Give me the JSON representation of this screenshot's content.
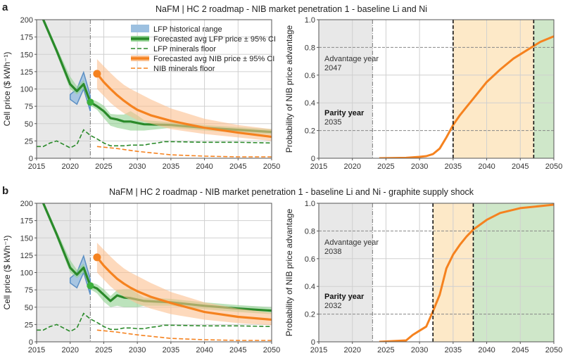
{
  "panels": [
    {
      "letter": "a",
      "title": "NaFM | HC 2 roadmap - NIB market penetration 1 - baseline Li and Ni"
    },
    {
      "letter": "b",
      "title": "NaFM | HC 2 roadmap - NIB market penetration 1 - baseline Li and Ni - graphite supply shock"
    }
  ],
  "colors": {
    "lfp": "#2a8a2a",
    "lfp_ci": "#8fd08f",
    "nib": "#f5821f",
    "nib_ci": "#fbc090",
    "hist": "#5b8fc4",
    "hist_fill": "#9cc0e0",
    "history_region": "#e8e8e8",
    "parity_region": "#fde9c8",
    "advantage_region": "#cfe7c9"
  },
  "chart_data": [
    {
      "type": "line",
      "panel": "a",
      "ylabel": "Cell price ($ kWh⁻¹)",
      "xlim": [
        2015,
        2050
      ],
      "ylim": [
        0,
        200
      ],
      "xticks": [
        "2015",
        "2020",
        "2025",
        "2030",
        "2035",
        "2040",
        "2045",
        "2050"
      ],
      "yticks": [
        "0",
        "25",
        "50",
        "75",
        "100",
        "125",
        "150",
        "175",
        "200"
      ],
      "grid": true,
      "history_until": 2023,
      "legend": {
        "placement": "top-right",
        "entries": [
          "LFP historical range",
          "Forecasted avg LFP price ± 95% CI",
          "LFP minerals floor",
          "Forecasted avg NIB price ± 95% CI",
          "NIB minerals floor"
        ]
      },
      "series": [
        {
          "name": "LFP historical range",
          "kind": "range",
          "x": [
            2020,
            2021,
            2022,
            2023
          ],
          "lower": [
            85,
            78,
            100,
            68
          ],
          "upper": [
            92,
            100,
            124,
            90
          ]
        },
        {
          "name": "Forecasted avg LFP price ± 95% CI",
          "kind": "line_ci",
          "marker_x": 2023,
          "x": [
            2015,
            2016,
            2018,
            2020,
            2021,
            2022,
            2023,
            2024,
            2025,
            2026,
            2027,
            2028,
            2029,
            2030,
            2031,
            2035,
            2040,
            2045,
            2050
          ],
          "y": [
            225,
            200,
            155,
            107,
            97,
            107,
            81,
            75,
            68,
            58,
            56,
            53,
            53,
            51,
            49,
            48,
            44,
            41,
            38
          ],
          "lower": [
            220,
            196,
            150,
            100,
            92,
            100,
            76,
            70,
            58,
            47,
            44,
            42,
            40,
            40,
            40,
            44,
            40,
            37,
            34
          ],
          "upper": [
            230,
            204,
            160,
            118,
            104,
            113,
            86,
            82,
            76,
            64,
            63,
            63,
            68,
            62,
            55,
            52,
            48,
            45,
            42
          ]
        },
        {
          "name": "LFP minerals floor",
          "kind": "dashed",
          "x": [
            2015,
            2016,
            2017,
            2018,
            2019,
            2020,
            2021,
            2022,
            2023,
            2024,
            2025,
            2026,
            2027,
            2028,
            2029,
            2030,
            2031,
            2032,
            2033,
            2034,
            2035,
            2040,
            2045,
            2050
          ],
          "y": [
            17,
            17,
            22,
            25,
            20,
            15,
            20,
            41,
            33,
            28,
            22,
            18,
            18,
            18,
            19,
            19,
            19,
            21,
            22,
            24,
            24,
            23,
            23,
            22
          ]
        },
        {
          "name": "Forecasted avg NIB price ± 95% CI",
          "kind": "line_ci",
          "marker_x": 2024,
          "x": [
            2024,
            2025,
            2026,
            2027,
            2028,
            2029,
            2030,
            2032,
            2035,
            2040,
            2045,
            2050
          ],
          "y": [
            122,
            110,
            100,
            91,
            83,
            76,
            70,
            62,
            54,
            44,
            37,
            31
          ],
          "lower": [
            100,
            90,
            80,
            72,
            65,
            60,
            55,
            50,
            42,
            35,
            30,
            25
          ],
          "upper": [
            143,
            133,
            123,
            114,
            106,
            100,
            95,
            85,
            72,
            57,
            48,
            42
          ]
        },
        {
          "name": "NIB minerals floor",
          "kind": "dashed",
          "x": [
            2024,
            2027,
            2030,
            2035,
            2040,
            2045,
            2050
          ],
          "y": [
            17,
            14,
            10,
            5,
            3,
            2,
            2
          ]
        }
      ]
    },
    {
      "type": "line",
      "panel": "a",
      "ylabel": "Probability of NIB price advantage",
      "xlim": [
        2015,
        2050
      ],
      "ylim": [
        0,
        1
      ],
      "xticks": [
        "2015",
        "2020",
        "2025",
        "2030",
        "2035",
        "2040",
        "2045",
        "2050"
      ],
      "yticks": [
        "0",
        "0.2",
        "0.4",
        "0.6",
        "0.8",
        "1.0"
      ],
      "grid": true,
      "history_until": 2023,
      "thresholds": [
        0.2,
        0.8
      ],
      "parity_year": 2035,
      "advantage_year": 2047,
      "annotations": {
        "advantage_label": "Advantage year",
        "advantage_value": "2047",
        "parity_label": "Parity year",
        "parity_value": "2035"
      },
      "series": [
        {
          "kind": "prob",
          "x": [
            2024,
            2028,
            2030,
            2031,
            2032,
            2033,
            2034,
            2035,
            2036,
            2037,
            2038,
            2039,
            2040,
            2042,
            2044,
            2046,
            2047,
            2048,
            2050
          ],
          "y": [
            0,
            0.003,
            0.01,
            0.015,
            0.03,
            0.07,
            0.15,
            0.24,
            0.31,
            0.37,
            0.43,
            0.49,
            0.55,
            0.64,
            0.72,
            0.78,
            0.81,
            0.84,
            0.88
          ]
        }
      ]
    },
    {
      "type": "line",
      "panel": "b",
      "ylabel": "Cell price ($ kWh⁻¹)",
      "xlim": [
        2015,
        2050
      ],
      "ylim": [
        0,
        200
      ],
      "xticks": [
        "2015",
        "2020",
        "2025",
        "2030",
        "2035",
        "2040",
        "2045",
        "2050"
      ],
      "yticks": [
        "0",
        "25",
        "50",
        "75",
        "100",
        "125",
        "150",
        "175",
        "200"
      ],
      "grid": true,
      "history_until": 2023,
      "series": [
        {
          "kind": "range",
          "x": [
            2020,
            2021,
            2022,
            2023
          ],
          "lower": [
            85,
            78,
            100,
            68
          ],
          "upper": [
            92,
            100,
            124,
            90
          ]
        },
        {
          "kind": "line_ci",
          "marker_x": 2023,
          "x": [
            2015,
            2016,
            2018,
            2020,
            2021,
            2022,
            2023,
            2024,
            2025,
            2026,
            2027,
            2028,
            2029,
            2030,
            2031,
            2035,
            2040,
            2045,
            2050
          ],
          "y": [
            225,
            200,
            155,
            107,
            97,
            107,
            81,
            77,
            68,
            59,
            67,
            64,
            63,
            61,
            59,
            57,
            52,
            48,
            45
          ],
          "lower": [
            220,
            196,
            150,
            100,
            92,
            100,
            76,
            70,
            58,
            50,
            52,
            50,
            50,
            50,
            52,
            52,
            47,
            43,
            40
          ],
          "upper": [
            230,
            204,
            160,
            118,
            104,
            113,
            86,
            83,
            76,
            66,
            75,
            76,
            76,
            70,
            64,
            62,
            57,
            53,
            50
          ]
        },
        {
          "kind": "dashed",
          "x": [
            2015,
            2016,
            2017,
            2018,
            2019,
            2020,
            2021,
            2022,
            2023,
            2024,
            2025,
            2026,
            2027,
            2028,
            2029,
            2030,
            2031,
            2032,
            2033,
            2034,
            2035,
            2040,
            2045,
            2050
          ],
          "y": [
            17,
            17,
            22,
            25,
            20,
            15,
            20,
            41,
            33,
            28,
            22,
            18,
            18,
            20,
            20,
            19,
            19,
            21,
            22,
            24,
            24,
            23,
            23,
            22
          ]
        },
        {
          "kind": "line_ci",
          "marker_x": 2024,
          "x": [
            2024,
            2025,
            2026,
            2027,
            2028,
            2029,
            2030,
            2032,
            2035,
            2040,
            2045,
            2050
          ],
          "y": [
            122,
            110,
            100,
            91,
            84,
            78,
            73,
            65,
            56,
            43,
            36,
            32
          ],
          "lower": [
            100,
            90,
            80,
            72,
            65,
            60,
            55,
            48,
            40,
            32,
            27,
            24
          ],
          "upper": [
            143,
            133,
            123,
            114,
            106,
            100,
            95,
            85,
            72,
            57,
            48,
            42
          ]
        },
        {
          "kind": "dashed",
          "x": [
            2024,
            2027,
            2030,
            2035,
            2040,
            2045,
            2050
          ],
          "y": [
            17,
            14,
            10,
            5,
            3,
            2,
            2
          ]
        }
      ]
    },
    {
      "type": "line",
      "panel": "b",
      "ylabel": "Probability of NIB price advantage",
      "xlim": [
        2015,
        2050
      ],
      "ylim": [
        0,
        1
      ],
      "xticks": [
        "2015",
        "2020",
        "2025",
        "2030",
        "2035",
        "2040",
        "2045",
        "2050"
      ],
      "yticks": [
        "0",
        "0.2",
        "0.4",
        "0.6",
        "0.8",
        "1.0"
      ],
      "grid": true,
      "history_until": 2023,
      "thresholds": [
        0.2,
        0.8
      ],
      "parity_year": 2032,
      "advantage_year": 2038,
      "annotations": {
        "advantage_label": "Advantage year",
        "advantage_value": "2038",
        "parity_label": "Parity year",
        "parity_value": "2032"
      },
      "series": [
        {
          "kind": "prob",
          "x": [
            2024,
            2028,
            2029,
            2030,
            2031,
            2032,
            2033,
            2034,
            2035,
            2036,
            2037,
            2038,
            2040,
            2042,
            2045,
            2050
          ],
          "y": [
            0,
            0.01,
            0.05,
            0.08,
            0.11,
            0.22,
            0.34,
            0.53,
            0.63,
            0.7,
            0.76,
            0.81,
            0.88,
            0.93,
            0.965,
            0.99
          ]
        }
      ]
    }
  ]
}
